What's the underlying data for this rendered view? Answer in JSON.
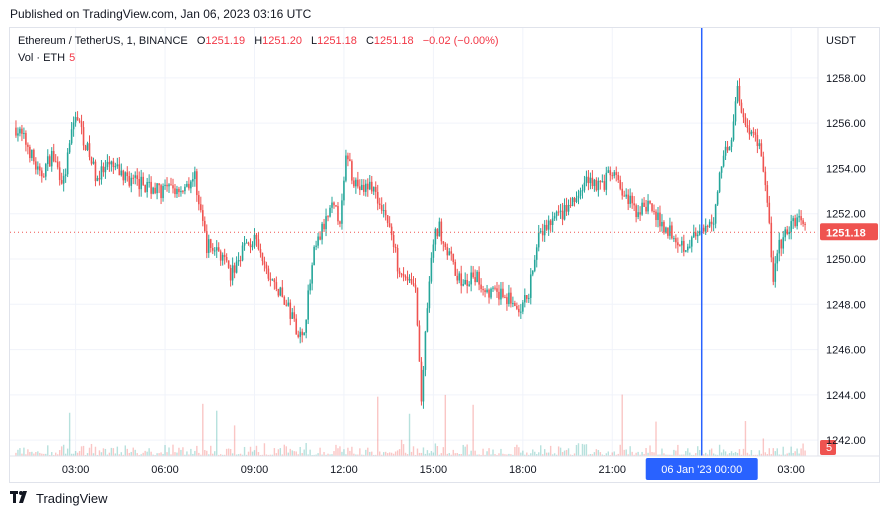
{
  "published": "Published on TradingView.com, Jan 06, 2023 03:16 UTC",
  "footer": {
    "brand": "TradingView",
    "logo": "tv-logo-icon"
  },
  "legend": {
    "symbol": "Ethereum / TetherUS, 1, BINANCE",
    "o_label": "O",
    "o_value": "1251.19",
    "h_label": "H",
    "h_value": "1251.20",
    "l_label": "L",
    "l_value": "1251.18",
    "c_label": "C",
    "c_value": "1251.18",
    "change": "−0.02 (−0.00%)",
    "vol_label": "Vol · ETH",
    "vol_value": "5"
  },
  "colors": {
    "up": "#26a69a",
    "down": "#ef5350",
    "crosshair": "#2962ff",
    "grid": "#f0f3fa",
    "text": "#131722"
  },
  "chart_data": {
    "type": "candlestick",
    "currency": "USDT",
    "ylim": [
      1241.3,
      1260.2
    ],
    "y_ticks": [
      "1258.00",
      "1256.00",
      "1254.00",
      "1252.00",
      "1250.00",
      "1248.00",
      "1246.00",
      "1244.00",
      "1242.00"
    ],
    "x_ticks": [
      "03:00",
      "06:00",
      "09:00",
      "12:00",
      "15:00",
      "18:00",
      "21:00",
      "03:00"
    ],
    "x_tick_hours": [
      3,
      6,
      9,
      12,
      15,
      18,
      21,
      27
    ],
    "crosshair_label": "06 Jan '23   00:00",
    "crosshair_hour": 24,
    "last_price": "1251.18",
    "volume_label": "5",
    "price_path": [
      [
        1.0,
        1255.8
      ],
      [
        1.4,
        1255.0
      ],
      [
        1.8,
        1253.6
      ],
      [
        2.2,
        1254.6
      ],
      [
        2.6,
        1253.4
      ],
      [
        3.0,
        1256.5
      ],
      [
        3.3,
        1255.2
      ],
      [
        3.7,
        1253.6
      ],
      [
        4.2,
        1254.1
      ],
      [
        4.6,
        1253.7
      ],
      [
        5.0,
        1253.4
      ],
      [
        5.5,
        1253.2
      ],
      [
        5.9,
        1253.0
      ],
      [
        6.5,
        1253.1
      ],
      [
        7.0,
        1253.6
      ],
      [
        7.4,
        1250.6
      ],
      [
        7.8,
        1250.4
      ],
      [
        8.2,
        1249.2
      ],
      [
        8.6,
        1250.5
      ],
      [
        9.0,
        1250.8
      ],
      [
        9.4,
        1249.4
      ],
      [
        9.8,
        1248.6
      ],
      [
        10.2,
        1247.6
      ],
      [
        10.6,
        1246.4
      ],
      [
        11.0,
        1250.2
      ],
      [
        11.3,
        1251.4
      ],
      [
        11.6,
        1252.2
      ],
      [
        11.9,
        1251.8
      ],
      [
        12.1,
        1254.8
      ],
      [
        12.3,
        1253.6
      ],
      [
        12.6,
        1253.0
      ],
      [
        12.9,
        1253.3
      ],
      [
        13.2,
        1252.6
      ],
      [
        13.5,
        1251.6
      ],
      [
        13.8,
        1249.8
      ],
      [
        14.1,
        1249.2
      ],
      [
        14.4,
        1248.6
      ],
      [
        14.6,
        1243.8
      ],
      [
        14.8,
        1247.8
      ],
      [
        15.0,
        1250.8
      ],
      [
        15.2,
        1251.4
      ],
      [
        15.4,
        1250.6
      ],
      [
        15.7,
        1249.6
      ],
      [
        16.0,
        1248.8
      ],
      [
        16.4,
        1249.2
      ],
      [
        16.8,
        1248.6
      ],
      [
        17.2,
        1248.4
      ],
      [
        17.6,
        1248.2
      ],
      [
        17.9,
        1247.4
      ],
      [
        18.2,
        1248.6
      ],
      [
        18.5,
        1250.8
      ],
      [
        18.9,
        1251.6
      ],
      [
        19.3,
        1252.0
      ],
      [
        19.8,
        1252.6
      ],
      [
        20.2,
        1253.6
      ],
      [
        20.6,
        1253.2
      ],
      [
        21.0,
        1253.8
      ],
      [
        21.4,
        1252.8
      ],
      [
        21.8,
        1252.1
      ],
      [
        22.2,
        1252.4
      ],
      [
        22.6,
        1251.6
      ],
      [
        23.0,
        1251.2
      ],
      [
        23.4,
        1250.6
      ],
      [
        23.8,
        1251.0
      ],
      [
        24.1,
        1251.1
      ],
      [
        24.4,
        1251.8
      ],
      [
        24.7,
        1254.6
      ],
      [
        25.0,
        1255.4
      ],
      [
        25.2,
        1257.6
      ],
      [
        25.4,
        1256.2
      ],
      [
        25.7,
        1255.6
      ],
      [
        26.0,
        1254.8
      ],
      [
        26.2,
        1252.4
      ],
      [
        26.4,
        1249.2
      ],
      [
        26.6,
        1250.6
      ],
      [
        26.9,
        1251.2
      ],
      [
        27.2,
        1251.9
      ],
      [
        27.5,
        1251.18
      ]
    ]
  }
}
